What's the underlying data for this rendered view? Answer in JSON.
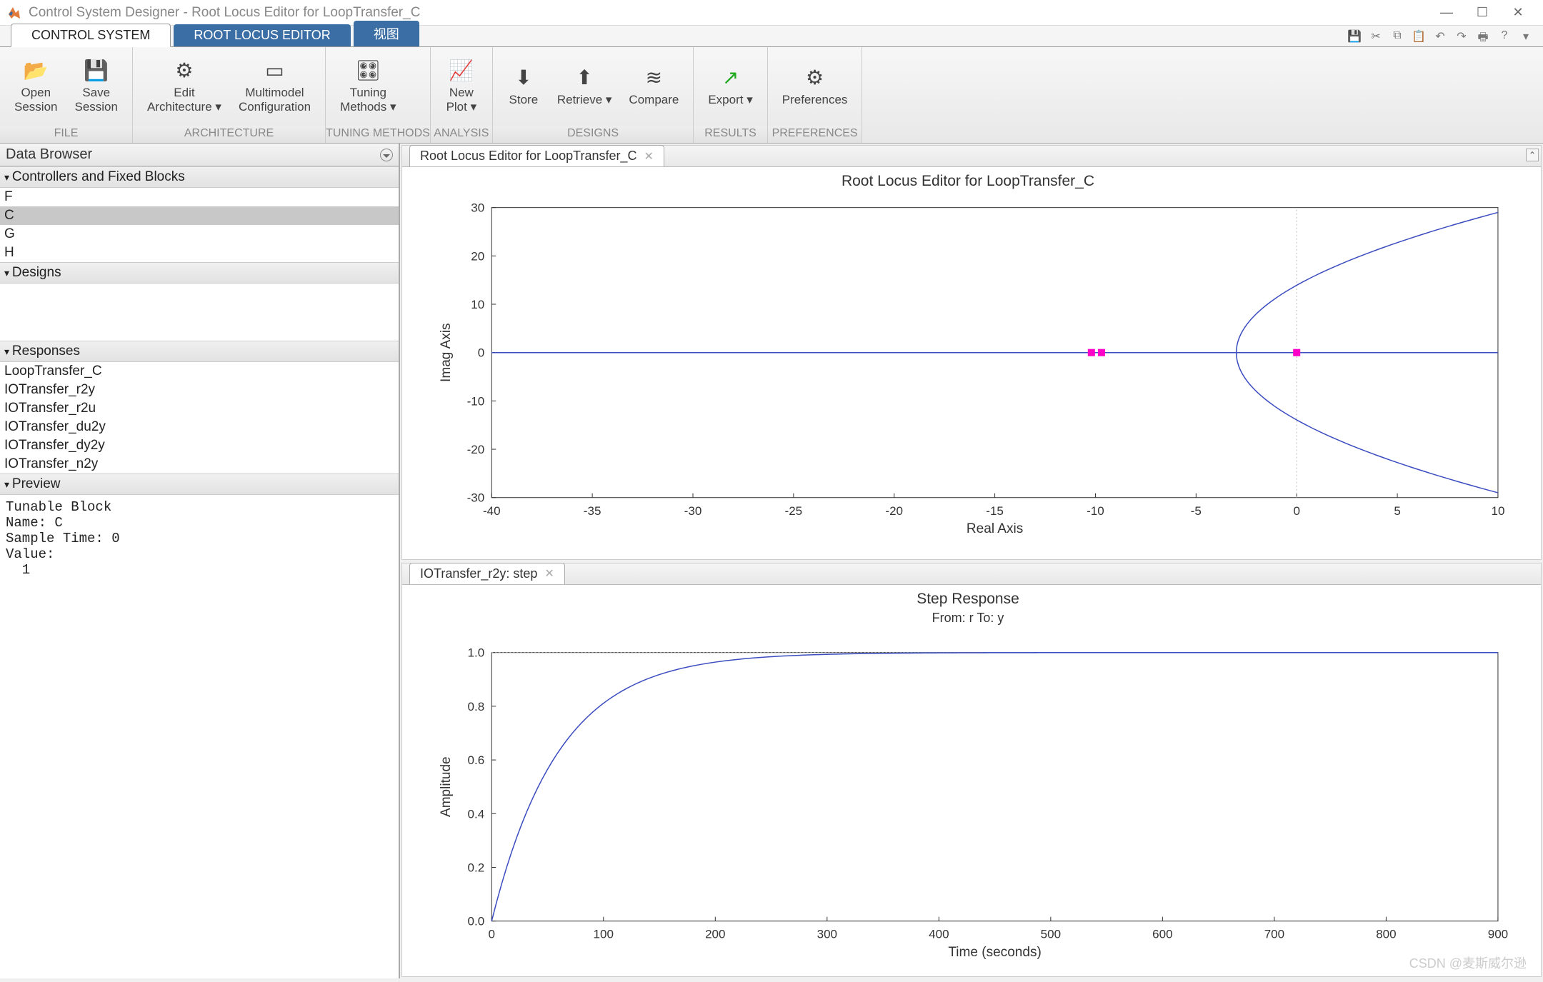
{
  "window": {
    "title": "Control System Designer - Root Locus Editor for LoopTransfer_C",
    "watermark": "CSDN @麦斯威尔逊"
  },
  "tabs": {
    "t1": "CONTROL SYSTEM",
    "t2": "ROOT LOCUS EDITOR",
    "t3": "视图"
  },
  "ribbon": {
    "file": {
      "label": "FILE",
      "open": "Open\nSession",
      "save": "Save\nSession"
    },
    "arch": {
      "label": "ARCHITECTURE",
      "edit": "Edit\nArchitecture",
      "multi": "Multimodel\nConfiguration"
    },
    "tuning": {
      "label": "TUNING METHODS",
      "methods": "Tuning\nMethods"
    },
    "analysis": {
      "label": "ANALYSIS",
      "plot": "New\nPlot"
    },
    "designs": {
      "label": "DESIGNS",
      "store": "Store",
      "retrieve": "Retrieve",
      "compare": "Compare"
    },
    "results": {
      "label": "RESULTS",
      "export": "Export"
    },
    "prefs": {
      "label": "PREFERENCES",
      "pref": "Preferences"
    }
  },
  "browser": {
    "title": "Data Browser",
    "sec1": "Controllers and Fixed Blocks",
    "blocks": [
      "F",
      "C",
      "G",
      "H"
    ],
    "selected_index": 1,
    "sec2": "Designs",
    "sec3": "Responses",
    "responses": [
      "LoopTransfer_C",
      "IOTransfer_r2y",
      "IOTransfer_r2u",
      "IOTransfer_du2y",
      "IOTransfer_dy2y",
      "IOTransfer_n2y"
    ],
    "sec4": "Preview",
    "preview_text": "Tunable Block\nName: C\nSample Time: 0\nValue:\n  1"
  },
  "plot1": {
    "tab": "Root Locus Editor for LoopTransfer_C",
    "title": "Root Locus Editor for LoopTransfer_C",
    "xlabel": "Real Axis",
    "ylabel": "Imag Axis",
    "xlim": [
      -40,
      10
    ],
    "xtick_step": 5,
    "ylim": [
      -30,
      30
    ],
    "ytick_step": 10,
    "line_color": "#3b4cc0",
    "marker_color": "#ff00c8",
    "real_line_y": 0,
    "poles_x": [
      -10.2,
      -9.7,
      0
    ],
    "branch_vertex_x": -3.0,
    "branch_end_x": 10,
    "branch_end_y": 29,
    "grid_ref_x": 0,
    "background": "#ffffff"
  },
  "plot2": {
    "tab": "IOTransfer_r2y: step",
    "title": "Step Response",
    "subtitle": "From: r  To: y",
    "xlabel": "Time (seconds)",
    "ylabel": "Amplitude",
    "xlim": [
      0,
      900
    ],
    "xtick_step": 100,
    "ylim": [
      0,
      1
    ],
    "ytick_step": 0.2,
    "line_color": "#3b4cc0",
    "tau": 60,
    "final_value": 1.0,
    "background": "#ffffff"
  }
}
